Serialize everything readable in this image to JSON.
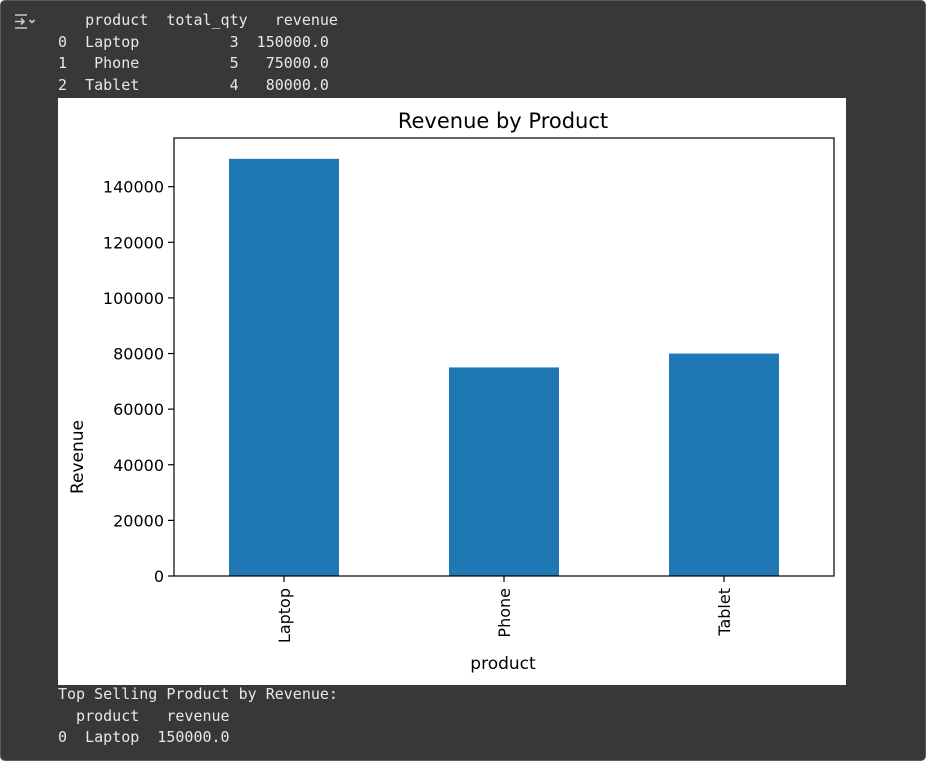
{
  "output_toggle": {
    "icon": "collapse-output-icon"
  },
  "stdout_top": {
    "lines": [
      "   product  total_qty   revenue",
      "0  Laptop          3  150000.0",
      "1   Phone          5   75000.0",
      "2  Tablet          4   80000.0"
    ]
  },
  "stdout_bottom": {
    "lines": [
      "Top Selling Product by Revenue:",
      "  product   revenue",
      "0  Laptop  150000.0"
    ]
  },
  "colors": {
    "output_background": "#383838",
    "stdout_text": "#e8e8e8",
    "bar": "#1f77b4"
  },
  "chart_data": {
    "type": "bar",
    "title": "Revenue by Product",
    "xlabel": "product",
    "ylabel": "Revenue",
    "categories": [
      "Laptop",
      "Phone",
      "Tablet"
    ],
    "values": [
      150000,
      75000,
      80000
    ],
    "ylim": [
      0,
      157500
    ],
    "yticks": [
      0,
      20000,
      40000,
      60000,
      80000,
      100000,
      120000,
      140000
    ],
    "ytick_labels": [
      "0",
      "20000",
      "40000",
      "60000",
      "80000",
      "100000",
      "120000",
      "140000"
    ],
    "xtick_rotation": "vertical",
    "grid": false,
    "legend": "none"
  }
}
